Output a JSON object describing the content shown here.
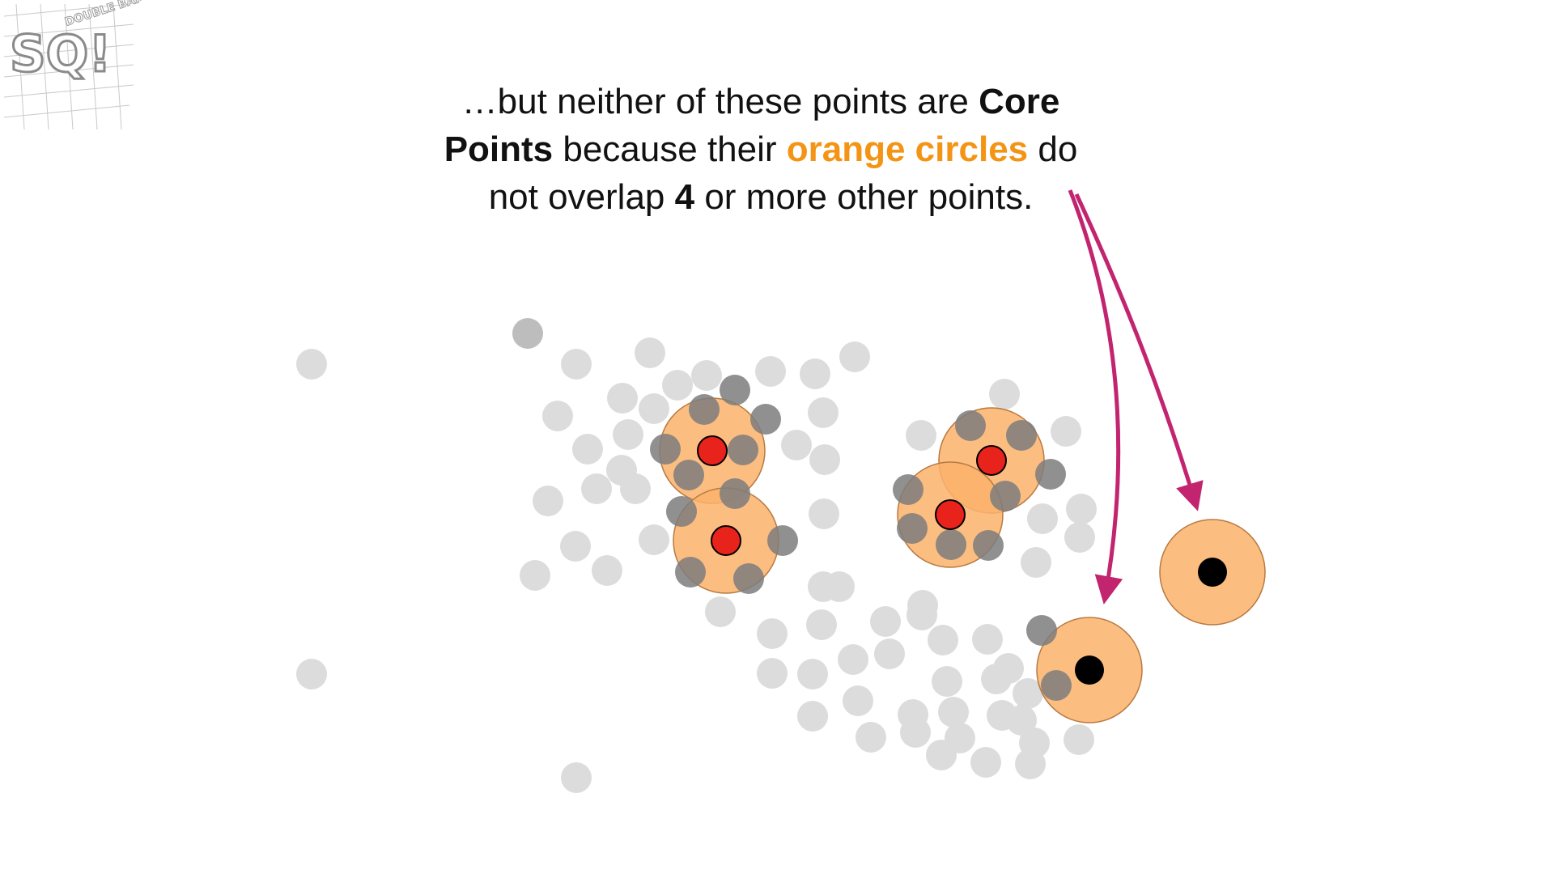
{
  "logo": {
    "main_letters": "SQ!",
    "small_text": "DOUBLE BAM!!!"
  },
  "caption": {
    "l1_a": "…but neither of these points are ",
    "l1_b": "Core",
    "l2_a": "Points",
    "l2_b": " because their ",
    "l2_c": "orange circles",
    "l2_d": " do",
    "l3_a": "not overlap ",
    "l3_b": "4",
    "l3_c": " or more other points."
  },
  "colors": {
    "orange_text": "#f39415",
    "arrow": "#c2246f",
    "light_point": "#dcdcdc",
    "dark_point": "#7d7d7d",
    "core_point": "#e8231c",
    "border_point": "#000000",
    "radius_circle": "#fbb26b"
  }
}
